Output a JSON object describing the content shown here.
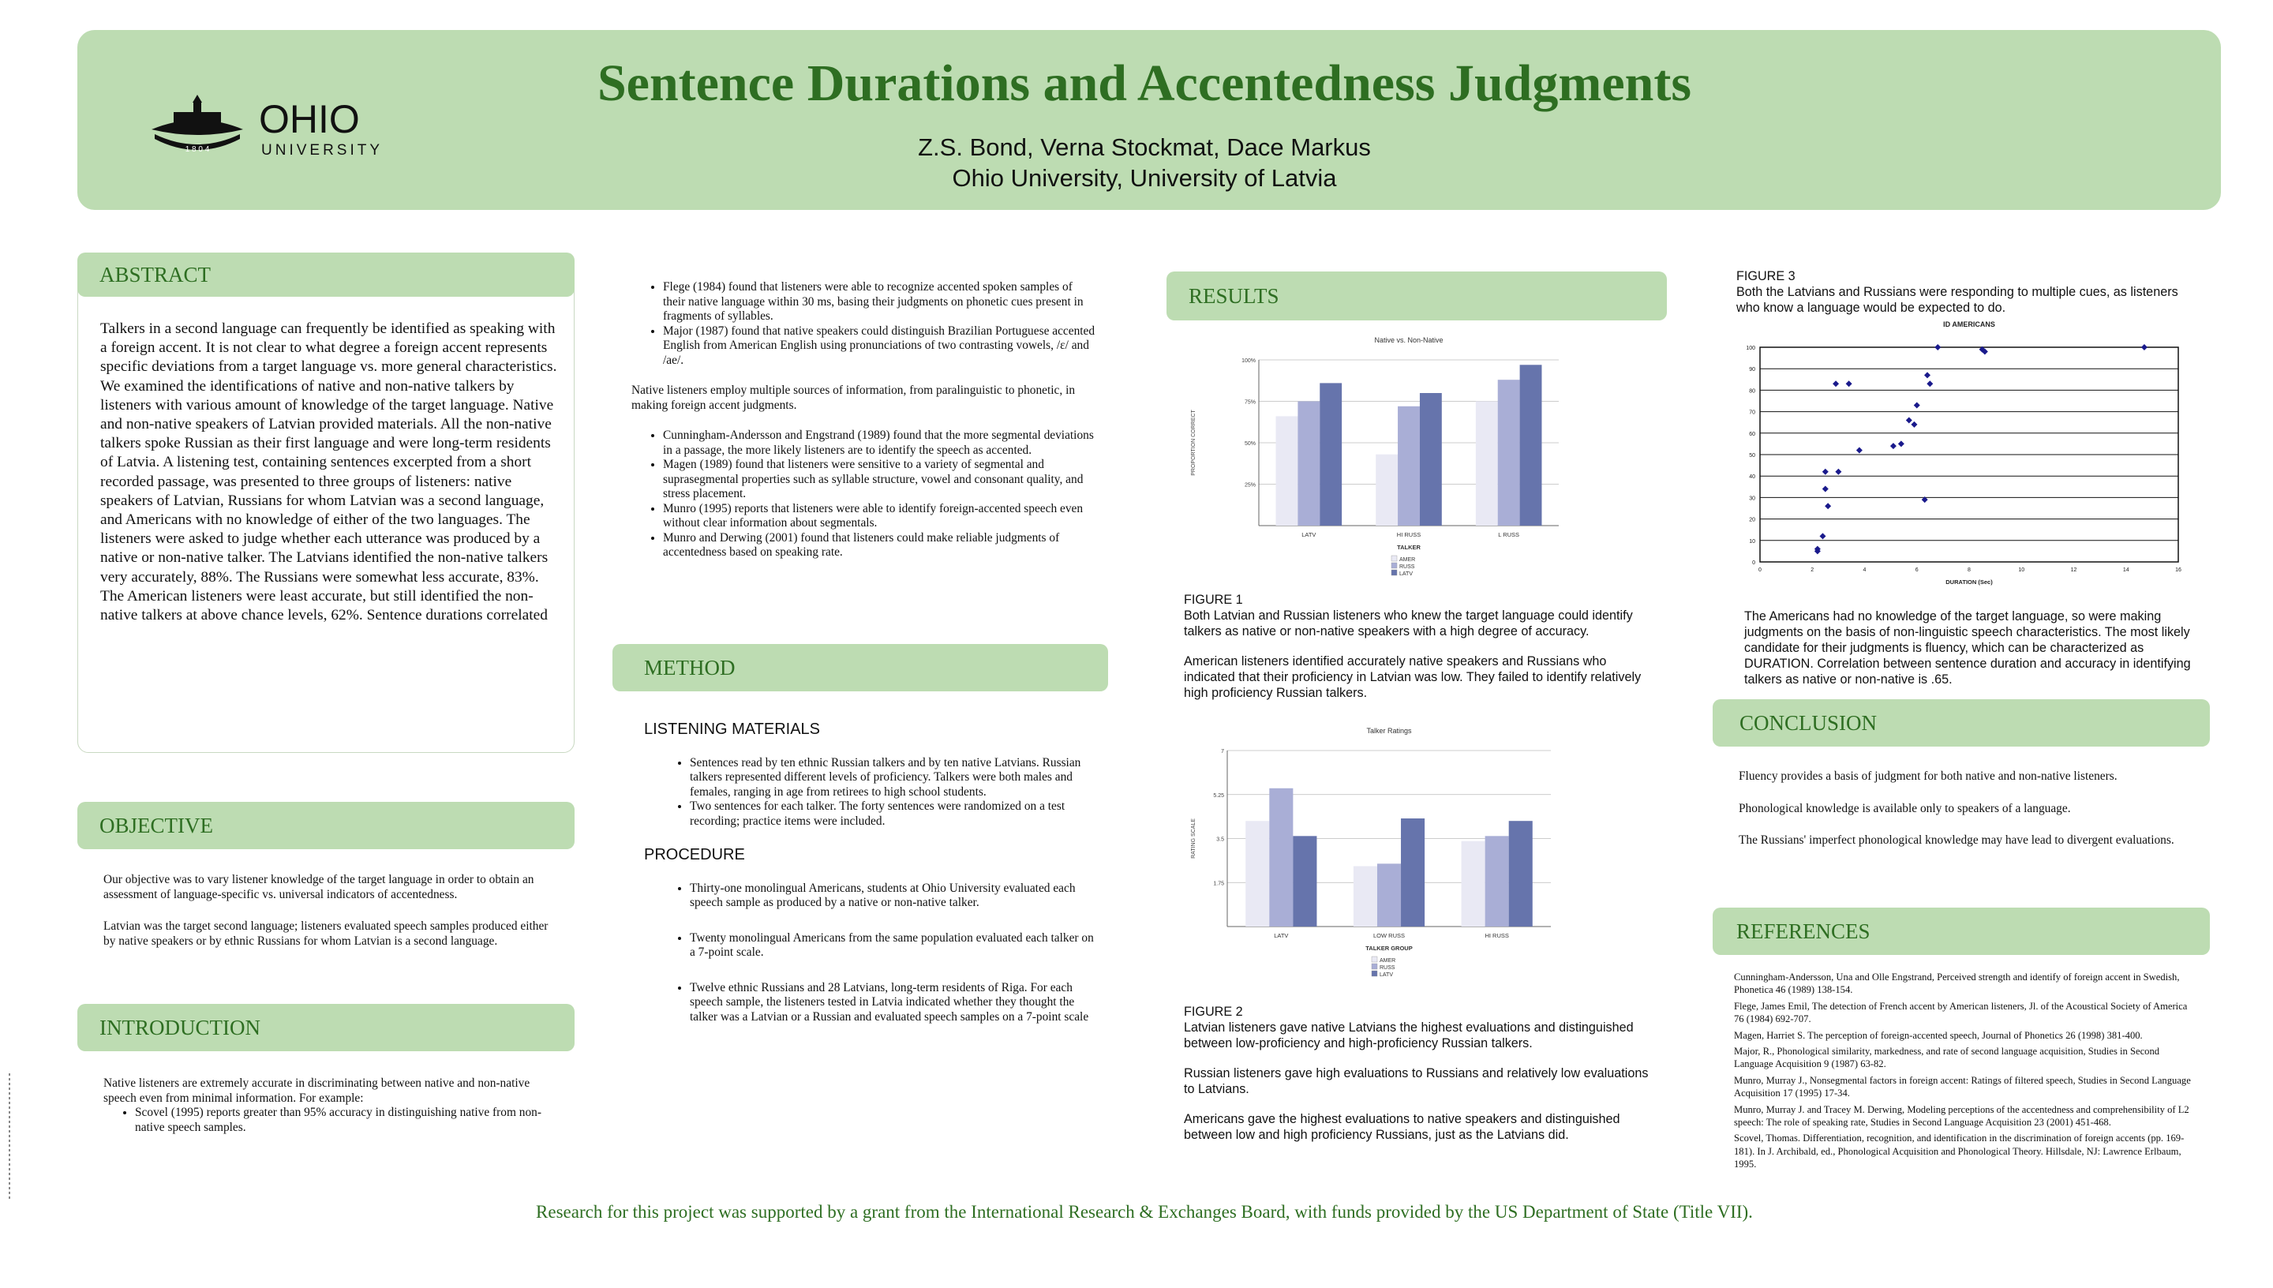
{
  "header": {
    "title": "Sentence Durations and Accentedness Judgments",
    "authors": "Z.S. Bond, Verna Stockmat, Dace Markus",
    "affiliation": "Ohio University, University of Latvia",
    "logo_text": "OHIO",
    "logo_sub": "UNIVERSITY",
    "logo_year": "1 8 0 4"
  },
  "abstract": {
    "heading": "ABSTRACT",
    "text": "Talkers in a second language can frequently be identified as speaking with a foreign accent. It is not clear to what degree a foreign accent represents specific deviations from a target language vs. more general characteristics. We examined the identifications of native and non-native talkers by listeners with various amount of knowledge of the target language. Native and non-native speakers of Latvian provided materials. All the non-native talkers spoke Russian as their first language and were long-term residents of Latvia. A listening test, containing sentences excerpted from a short recorded passage, was presented to three groups of listeners: native speakers of Latvian, Russians for whom Latvian was a second language, and Americans with no knowledge of either of the two languages. The listeners were asked to judge whether each utterance was produced by a native or non-native talker. The Latvians identified the non-native talkers very accurately, 88%. The Russians were somewhat less accurate, 83%. The American listeners were least accurate, but still identified the non-native talkers at above chance levels, 62%. Sentence durations correlated"
  },
  "objective": {
    "heading": "OBJECTIVE",
    "p1": "Our objective was to vary listener knowledge of the target language in order to obtain an assessment of language-specific vs. universal indicators of accentedness.",
    "p2": "Latvian was the target second language; listeners evaluated speech samples produced either by native speakers or by ethnic Russians for whom Latvian is a second language."
  },
  "introduction": {
    "heading": "INTRODUCTION",
    "p1": "Native listeners are extremely accurate in discriminating between native and non-native speech even from minimal information. For example:",
    "bullet1": "Scovel (1995) reports greater than 95% accuracy in distinguishing native from non-native speech samples."
  },
  "column2": {
    "bullets_a": [
      "Flege (1984) found that listeners were able to recognize accented spoken samples of their native language within 30 ms, basing their judgments on phonetic cues present in fragments of syllables.",
      "Major (1987) found that native speakers could distinguish Brazilian Portuguese accented English from American English using pronunciations of two contrasting vowels, /ɛ/ and /ae/."
    ],
    "para": "Native listeners employ multiple sources of information, from paralinguistic to phonetic, in making foreign accent judgments.",
    "bullets_b": [
      "Cunningham-Andersson and Engstrand (1989) found that the more segmental deviations in a passage, the more likely listeners are to identify the speech as accented.",
      "Magen (1989) found that listeners were sensitive to a variety of segmental and suprasegmental properties such as syllable structure, vowel and consonant quality, and stress placement.",
      "Munro (1995) reports that listeners were able to identify foreign-accented speech even without clear information about segmentals.",
      "Munro and Derwing (2001) found that listeners could make reliable judgments of accentedness based on speaking rate."
    ]
  },
  "method": {
    "heading": "METHOD",
    "sub1": "LISTENING MATERIALS",
    "materials": [
      "Sentences read by ten ethnic Russian talkers and by ten native Latvians. Russian talkers represented different levels of proficiency. Talkers were both males and females, ranging in age from retirees to high school students.",
      "Two sentences for each talker. The forty sentences were randomized on a test recording; practice items were included."
    ],
    "sub2": "PROCEDURE",
    "procedure": [
      "Thirty-one monolingual Americans, students at Ohio University evaluated each speech sample as produced by a native or non-native talker.",
      "Twenty monolingual Americans from the same population evaluated each talker on a 7-point scale.",
      "Twelve ethnic Russians and 28 Latvians, long-term residents of Riga. For each speech sample, the listeners tested in Latvia indicated whether they thought the talker was a Latvian or a Russian and evaluated speech samples on a 7-point scale"
    ]
  },
  "results": {
    "heading": "RESULTS",
    "fig1_label": "FIGURE 1",
    "fig1_cap": "Both Latvian and Russian listeners who knew the target language could identify talkers as native or non-native speakers with a high degree of accuracy.",
    "fig1_cap2": "American listeners identified accurately native speakers and Russians who indicated that their proficiency in Latvian was low. They failed to identify relatively high proficiency Russian talkers.",
    "fig2_label": "FIGURE 2",
    "fig2_cap": "Latvian listeners gave native Latvians the highest evaluations and distinguished between low-proficiency and high-proficiency Russian talkers.",
    "fig2_cap2": "Russian listeners gave high evaluations to Russians and relatively low evaluations to Latvians.",
    "fig2_cap3": "Americans gave the highest evaluations to native speakers and distinguished between low and high proficiency Russians, just as the Latvians did."
  },
  "fig3": {
    "label": "FIGURE 3",
    "cap": "Both the Latvians and Russians were responding to multiple cues, as listeners who know a language would be expected to do.",
    "text": "The Americans had no knowledge of the target language, so were making judgments on the basis of non-linguistic speech characteristics. The most likely candidate for their judgments is fluency, which can be characterized as DURATION. Correlation between sentence duration and accuracy in identifying talkers as native or non-native is .65."
  },
  "conclusion": {
    "heading": "CONCLUSION",
    "items": [
      "Fluency provides a basis of judgment for both native and non-native listeners.",
      "Phonological knowledge is available only to speakers of a language.",
      "The Russians' imperfect phonological knowledge may have lead to divergent evaluations."
    ]
  },
  "references": {
    "heading": "REFERENCES",
    "items": [
      "Cunningham-Andersson, Una and Olle Engstrand, Perceived strength and identify of foreign accent in Swedish, Phonetica 46 (1989) 138-154.",
      "Flege, James Emil, The detection of French accent by American listeners, Jl. of the Acoustical Society of America 76 (1984) 692-707.",
      "Magen, Harriet S. The perception of foreign-accented speech, Journal of Phonetics 26 (1998) 381-400.",
      "Major, R., Phonological similarity, markedness, and rate of second language acquisition, Studies in Second Language Acquisition 9 (1987) 63-82.",
      "Munro, Murray J., Nonsegmental factors in foreign accent: Ratings of filtered speech, Studies in Second Language Acquisition 17 (1995) 17-34.",
      "Munro, Murray J. and Tracey M. Derwing, Modeling perceptions of the accentedness and comprehensibility of L2 speech: The role of speaking rate, Studies in Second Language Acquisition 23 (2001) 451-468.",
      "Scovel, Thomas. Differentiation, recognition, and identification in the discrimination of foreign accents (pp. 169-181). In J. Archibald, ed., Phonological Acquisition and Phonological Theory. Hillsdale, NJ: Lawrence Erlbaum, 1995."
    ]
  },
  "footer": "Research for this project was supported by a grant from the International Research & Exchanges Board, with funds provided by the US Department of State (Title VII).",
  "chart_data": [
    {
      "type": "bar",
      "title": "Native vs. Non-Native",
      "xlabel": "TALKER",
      "ylabel": "PROPORTION CORRECT",
      "categories": [
        "LATV",
        "HI RUSS",
        "L RUSS"
      ],
      "yticks": [
        "25%",
        "50%",
        "75%",
        "100%"
      ],
      "ylim": [
        0,
        1
      ],
      "series": [
        {
          "name": "AMER",
          "values": [
            0.66,
            0.43,
            0.75
          ]
        },
        {
          "name": "RUSS",
          "values": [
            0.75,
            0.72,
            0.88
          ]
        },
        {
          "name": "LATV",
          "values": [
            0.86,
            0.8,
            0.97
          ]
        }
      ],
      "colors": [
        "#e9e9f4",
        "#a9aed6",
        "#6674ac"
      ],
      "legend": "bottom"
    },
    {
      "type": "bar",
      "title": "Talker Ratings",
      "xlabel": "TALKER GROUP",
      "ylabel": "RATING SCALE",
      "categories": [
        "LATV",
        "LOW RUSS",
        "HI RUSS"
      ],
      "yticks": [
        "1.75",
        "3.5",
        "5.25",
        "7"
      ],
      "ylim": [
        0,
        7
      ],
      "series": [
        {
          "name": "AMER",
          "values": [
            4.2,
            2.4,
            3.4
          ]
        },
        {
          "name": "RUSS",
          "values": [
            5.5,
            2.5,
            3.6
          ]
        },
        {
          "name": "LATV",
          "values": [
            3.6,
            4.3,
            4.2
          ]
        }
      ],
      "colors": [
        "#e9e9f4",
        "#a9aed6",
        "#6674ac"
      ],
      "legend": "bottom"
    },
    {
      "type": "scatter",
      "title": "ID AMERICANS",
      "xlabel": "DURATION (Sec)",
      "ylabel": "",
      "xlim": [
        0,
        16
      ],
      "ylim": [
        0,
        100
      ],
      "xticks": [
        "0",
        "2",
        "4",
        "6",
        "8",
        "10",
        "12",
        "14",
        "16"
      ],
      "yticks": [
        "0",
        "10",
        "20",
        "30",
        "40",
        "50",
        "60",
        "70",
        "80",
        "90",
        "100"
      ],
      "x": [
        2.2,
        2.2,
        2.4,
        2.6,
        2.5,
        2.5,
        3.0,
        2.9,
        3.4,
        3.8,
        5.1,
        5.4,
        5.7,
        5.9,
        6.0,
        6.5,
        6.4,
        6.3,
        6.8,
        8.6,
        8.5,
        14.7
      ],
      "y": [
        5,
        6,
        12,
        26,
        34,
        42,
        42,
        83,
        83,
        52,
        54,
        55,
        66,
        64,
        73,
        83,
        87,
        29,
        100,
        98,
        99,
        100
      ],
      "color": "#1a1a8c"
    }
  ]
}
